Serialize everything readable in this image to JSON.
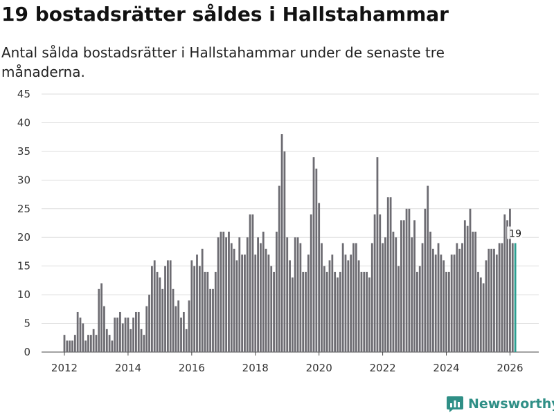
{
  "header": {
    "title": "19 bostadsrätter såldes i Hallstahammar",
    "subtitle": "Antal sålda bostadsrätter i Hallstahammar under de senaste tre månaderna."
  },
  "brand": {
    "name": "Newsworthy",
    "color": "#2f8f86"
  },
  "colors": {
    "bar": "#6d6c72",
    "highlight": "#2a9d8f",
    "grid": "#dddddd"
  },
  "chart_data": {
    "type": "bar",
    "title": "19 bostadsrätter såldes i Hallstahammar",
    "xlabel": "",
    "ylabel": "",
    "ylim": [
      0,
      45
    ],
    "yticks": [
      0,
      5,
      10,
      15,
      20,
      25,
      30,
      35,
      40,
      45
    ],
    "xticks": [
      "2012",
      "2014",
      "2016",
      "2018",
      "2020",
      "2022",
      "2024",
      "2026"
    ],
    "start": "2012-01",
    "end": "2026-03",
    "highlight_label": "19",
    "values": [
      3,
      2,
      2,
      2,
      3,
      7,
      6,
      5,
      2,
      3,
      3,
      4,
      3,
      11,
      12,
      8,
      4,
      3,
      2,
      6,
      6,
      7,
      5,
      6,
      6,
      4,
      6,
      7,
      7,
      4,
      3,
      8,
      10,
      15,
      16,
      14,
      13,
      11,
      15,
      16,
      16,
      11,
      8,
      9,
      6,
      7,
      4,
      9,
      16,
      15,
      17,
      15,
      18,
      14,
      14,
      11,
      11,
      14,
      20,
      21,
      21,
      20,
      21,
      19,
      18,
      16,
      20,
      17,
      17,
      20,
      24,
      24,
      17,
      20,
      19,
      21,
      18,
      17,
      15,
      14,
      21,
      29,
      38,
      35,
      20,
      16,
      13,
      20,
      20,
      19,
      14,
      14,
      17,
      24,
      34,
      32,
      26,
      19,
      15,
      14,
      16,
      17,
      14,
      13,
      14,
      19,
      17,
      16,
      17,
      19,
      19,
      16,
      14,
      14,
      14,
      13,
      19,
      24,
      34,
      24,
      19,
      20,
      27,
      27,
      21,
      20,
      15,
      23,
      23,
      25,
      25,
      20,
      23,
      14,
      15,
      19,
      25,
      29,
      21,
      18,
      17,
      19,
      17,
      16,
      14,
      14,
      17,
      17,
      19,
      18,
      19,
      23,
      22,
      25,
      21,
      21,
      14,
      13,
      12,
      16,
      18,
      18,
      18,
      17,
      19,
      19,
      24,
      23,
      25,
      19,
      19
    ]
  }
}
